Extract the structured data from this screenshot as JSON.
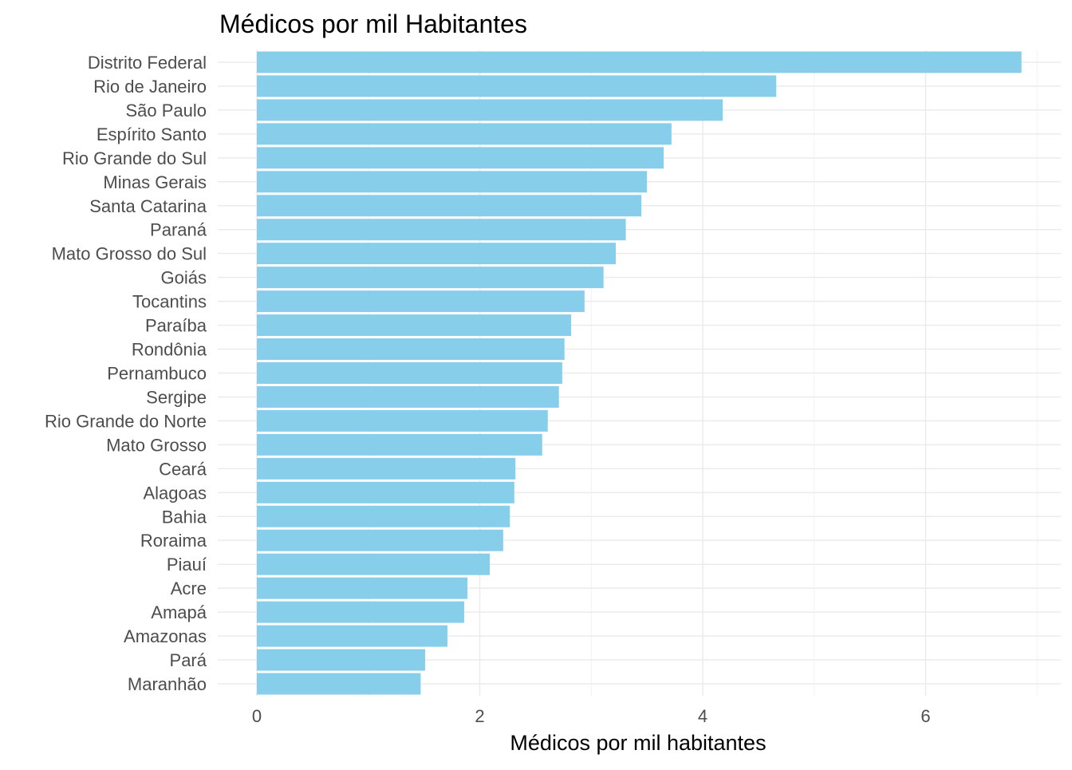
{
  "chart_data": {
    "type": "bar",
    "orientation": "horizontal",
    "title": "Médicos por mil Habitantes",
    "xlabel": "Médicos por mil habitantes",
    "ylabel": "",
    "xlim": [
      0,
      7
    ],
    "x_ticks": [
      0,
      2,
      4,
      6
    ],
    "grid": true,
    "bar_color": "#87CEEB",
    "categories": [
      "Distrito Federal",
      "Rio de Janeiro",
      "São Paulo",
      "Espírito Santo",
      "Rio Grande do Sul",
      "Minas Gerais",
      "Santa Catarina",
      "Paraná",
      "Mato Grosso do Sul",
      "Goiás",
      "Tocantins",
      "Paraíba",
      "Rondônia",
      "Pernambuco",
      "Sergipe",
      "Rio Grande do Norte",
      "Mato Grosso",
      "Ceará",
      "Alagoas",
      "Bahia",
      "Roraima",
      "Piauí",
      "Acre",
      "Amapá",
      "Amazonas",
      "Pará",
      "Maranhão"
    ],
    "values": [
      6.86,
      4.66,
      4.18,
      3.72,
      3.65,
      3.5,
      3.45,
      3.31,
      3.22,
      3.11,
      2.94,
      2.82,
      2.76,
      2.74,
      2.71,
      2.61,
      2.56,
      2.32,
      2.31,
      2.27,
      2.21,
      2.09,
      1.89,
      1.86,
      1.71,
      1.51,
      1.47
    ]
  }
}
